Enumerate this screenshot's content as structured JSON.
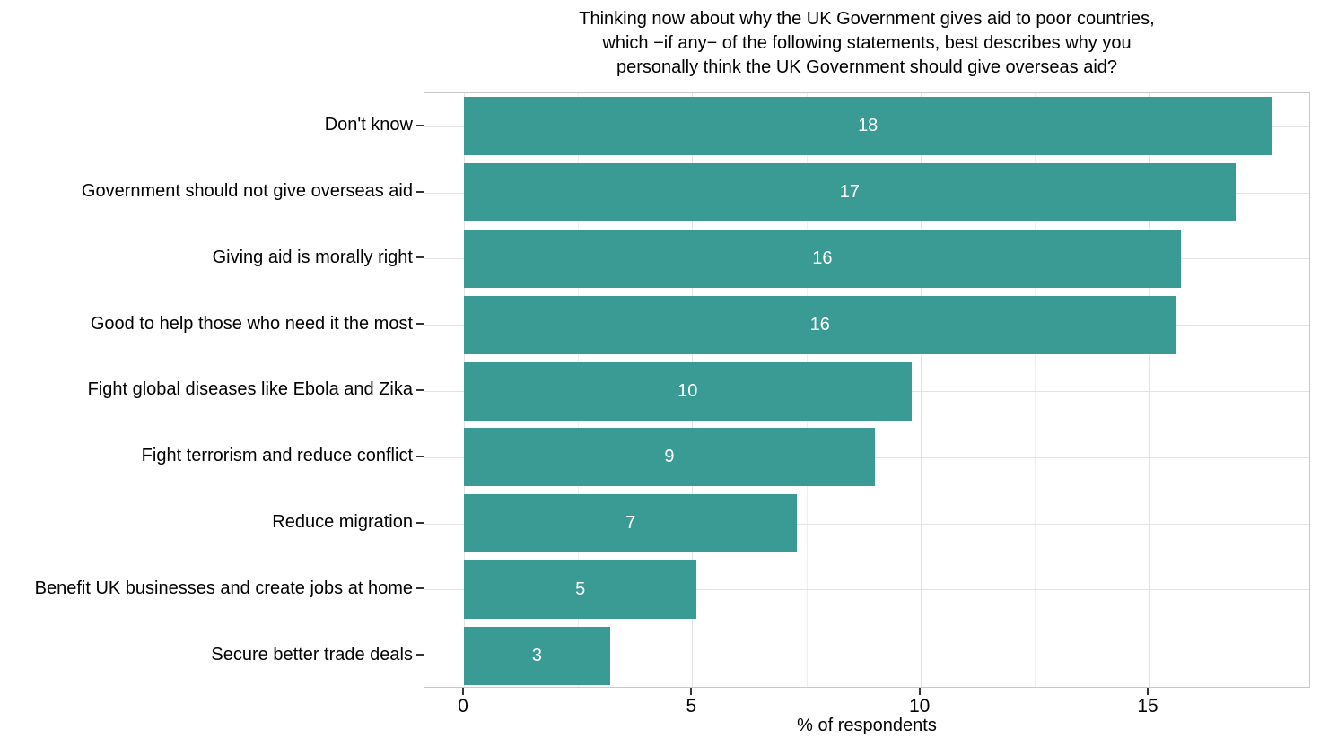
{
  "chart_data": {
    "type": "bar",
    "orientation": "horizontal",
    "title": "Thinking now about why the UK Government gives aid to poor countries, which −if any− of the following statements, best describes why you personally think the UK Government should give overseas aid?",
    "title_lines": [
      "Thinking now about why the UK Government gives aid to poor countries,",
      "which −if any− of the following statements, best describes why you",
      "personally think the UK Government should give overseas aid?"
    ],
    "categories": [
      "Don't know",
      "Government should not give overseas aid",
      "Giving aid is morally right",
      "Good to help those who need it the most",
      "Fight global diseases like Ebola and Zika",
      "Fight terrorism and reduce conflict",
      "Reduce migration",
      "Benefit UK businesses and create jobs at home",
      "Secure better trade deals"
    ],
    "values": [
      18,
      17,
      16,
      16,
      10,
      9,
      7,
      5,
      3
    ],
    "bar_lengths_pct": [
      17.7,
      16.9,
      15.7,
      15.6,
      9.8,
      9.0,
      7.3,
      5.1,
      3.2
    ],
    "xlabel": "% of respondents",
    "x_ticks": [
      0,
      5,
      10,
      15
    ],
    "x_minor_gridlines": [
      2.5,
      7.5,
      12.5,
      17.5
    ],
    "xlim": [
      -0.87,
      18.56
    ],
    "grid": true,
    "legend": false,
    "value_labels_position": "center",
    "colors": {
      "bar": "#3A9A94",
      "value_label": "#FFFFFF",
      "grid_major": "#E3E3E3",
      "grid_minor": "#EFEFEF",
      "panel_border": "#C9C9C9",
      "tick": "#333333",
      "text": "#000000",
      "background": "#FFFFFF"
    }
  }
}
